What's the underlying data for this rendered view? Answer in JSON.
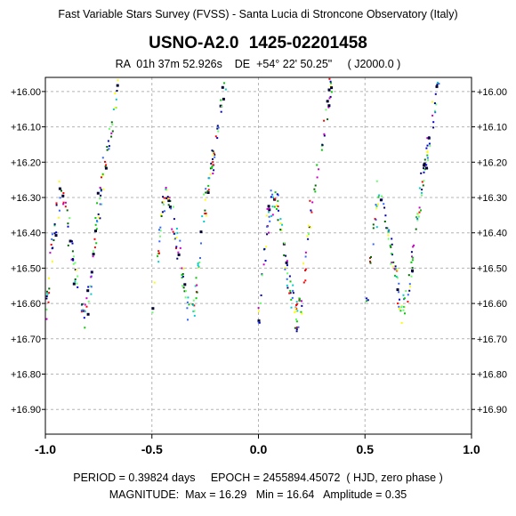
{
  "header": {
    "survey_line": "Fast Variable Stars Survey (FVSS) - Santa Lucia di Stroncone Observatory (Italy)",
    "star_name": "USNO-A2.0  1425-02201458",
    "coords_line": "RA  01h 37m 52.926s    DE  +54° 22' 50.25\"     ( J2000.0 )"
  },
  "footer": {
    "period_line": "PERIOD = 0.39824 days     EPOCH = 2455894.45072  ( HJD, zero phase )",
    "magnitude_line": "MAGNITUDE:  Max = 16.29   Min = 16.64   Amplitude = 0.35"
  },
  "chart_data": {
    "type": "scatter",
    "x_range": [
      -1.0,
      1.0
    ],
    "y_range": [
      16.97,
      15.96
    ],
    "y_inverted": true,
    "grid": true,
    "x_ticks": [
      -1.0,
      -0.5,
      0.0,
      0.5,
      1.0
    ],
    "x_tick_labels": [
      "-1.0",
      "-0.5",
      "0.0",
      "0.5",
      "1.0"
    ],
    "y_ticks": [
      16.0,
      16.1,
      16.2,
      16.3,
      16.4,
      16.5,
      16.6,
      16.7,
      16.8,
      16.9
    ],
    "y_tick_labels": [
      "+16.00",
      "+16.10",
      "+16.20",
      "+16.30",
      "+16.40",
      "+16.50",
      "+16.60",
      "+16.70",
      "+16.80",
      "+16.90"
    ],
    "light_curve": {
      "phase": [
        0.0,
        0.02,
        0.04,
        0.06,
        0.08,
        0.1,
        0.12,
        0.14,
        0.16,
        0.18,
        0.2,
        0.22,
        0.24,
        0.26,
        0.28,
        0.3,
        0.32,
        0.34,
        0.36,
        0.38,
        0.4,
        0.42,
        0.44,
        0.46,
        0.48,
        0.5
      ],
      "magnitude": [
        16.63,
        16.58,
        16.51,
        16.45,
        16.39,
        16.34,
        16.31,
        16.3,
        16.31,
        16.34,
        16.38,
        16.42,
        16.46,
        16.5,
        16.54,
        16.57,
        16.6,
        16.62,
        16.62,
        16.6,
        16.56,
        16.5,
        16.43,
        16.37,
        16.33,
        16.64
      ],
      "scatter": 0.05,
      "points_per_phase_cycle": 420
    },
    "series_colors": [
      "#0000cc",
      "#00cc00",
      "#ff0000",
      "#00cccc",
      "#ffff00",
      "#cc00cc",
      "#000066",
      "#66ff66",
      "#3366ff",
      "#006600"
    ]
  }
}
